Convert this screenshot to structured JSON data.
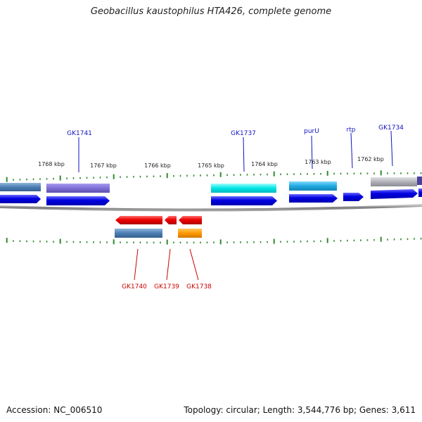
{
  "title": "Geobacillus kaustophilus HTA426, complete genome",
  "footer": {
    "accession": "Accession: NC_006510",
    "summary": "Topology: circular; Length: 3,544,776 bp; Genes: 3,611"
  },
  "scale_labels": [
    "1768 kbp",
    "1767 kbp",
    "1766 kbp",
    "1765 kbp",
    "1764 kbp",
    "1763 kbp",
    "1762 kbp"
  ],
  "genes_forward": [
    {
      "name": "GK1741",
      "color": "#7F6FD6"
    },
    {
      "name": "GK1737",
      "color": "#00E5E5"
    },
    {
      "name": "purU",
      "color": "#1FA9E0"
    },
    {
      "name": "rtp",
      "color": ""
    },
    {
      "name": "GK1734",
      "color": "#B0B0B8"
    }
  ],
  "genes_reverse": [
    {
      "name": "GK1740",
      "color": "#4A7FB5"
    },
    {
      "name": "GK1739",
      "color": ""
    },
    {
      "name": "GK1738",
      "color": "#FF9900"
    }
  ],
  "colors": {
    "forward_label": "#1010C0",
    "reverse_label": "#CC0000",
    "cds_forward": "#0000E6",
    "cds_reverse": "#EE0000",
    "tick": "#2E8B2E",
    "backbone": "#888888"
  }
}
